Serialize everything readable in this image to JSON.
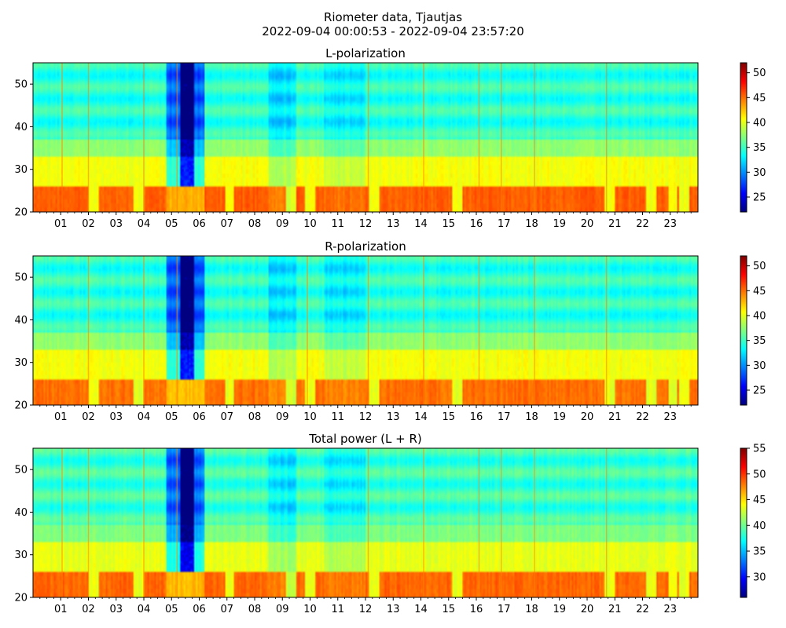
{
  "figure": {
    "suptitle_line1": "Riometer data, Tjautjas",
    "suptitle_line2": "2022-09-04 00:00:53 - 2022-09-04 23:57:20"
  },
  "colors": {
    "colormap": "jet",
    "axis": "#000000",
    "background": "#ffffff"
  },
  "chart_data": [
    {
      "type": "heatmap",
      "title": "L-polarization",
      "xlabel": "",
      "ylabel": "",
      "x_tick_labels": [
        "01",
        "02",
        "03",
        "04",
        "05",
        "06",
        "07",
        "08",
        "09",
        "10",
        "11",
        "12",
        "13",
        "14",
        "15",
        "16",
        "17",
        "18",
        "19",
        "20",
        "21",
        "22",
        "23"
      ],
      "x_range_hours": [
        0,
        24
      ],
      "y_ticks": [
        20,
        30,
        40,
        50
      ],
      "ylim": [
        20,
        55
      ],
      "colorbar": {
        "range": [
          22,
          52
        ],
        "ticks": [
          25,
          30,
          35,
          40,
          45,
          50
        ]
      },
      "features": {
        "band_rows": [
          [
            20,
            26,
            45.5
          ],
          [
            26,
            33,
            40.5
          ],
          [
            33,
            37,
            37.5
          ],
          [
            37,
            55,
            34.5
          ]
        ],
        "dip_hours": [
          [
            4.8,
            6.2,
            -6
          ],
          [
            8.5,
            9.5,
            -2
          ],
          [
            10.5,
            12,
            -1.5
          ]
        ],
        "spike_hours": [
          1.05,
          2.0,
          4.0,
          5.2,
          12.1,
          14.1,
          16.1,
          16.9,
          18.1,
          20.7
        ],
        "dark_columns": [
          5.45,
          5.7
        ],
        "gap_hours": [
          2.2,
          3.8,
          7.1,
          9.3,
          10.0,
          12.3,
          15.3,
          20.8,
          22.3,
          23.1,
          23.5
        ]
      }
    },
    {
      "type": "heatmap",
      "title": "R-polarization",
      "xlabel": "",
      "ylabel": "",
      "x_tick_labels": [
        "01",
        "02",
        "03",
        "04",
        "05",
        "06",
        "07",
        "08",
        "09",
        "10",
        "11",
        "12",
        "13",
        "14",
        "15",
        "16",
        "17",
        "18",
        "19",
        "20",
        "21",
        "22",
        "23"
      ],
      "x_range_hours": [
        0,
        24
      ],
      "y_ticks": [
        20,
        30,
        40,
        50
      ],
      "ylim": [
        20,
        55
      ],
      "colorbar": {
        "range": [
          22,
          52
        ],
        "ticks": [
          25,
          30,
          35,
          40,
          45,
          50
        ]
      },
      "features": {
        "band_rows": [
          [
            20,
            26,
            45.0
          ],
          [
            26,
            33,
            40.5
          ],
          [
            33,
            37,
            37.5
          ],
          [
            37,
            55,
            34.5
          ]
        ],
        "dip_hours": [
          [
            4.8,
            6.2,
            -6
          ],
          [
            8.5,
            9.5,
            -2
          ],
          [
            10.5,
            12,
            -1.5
          ]
        ],
        "spike_hours": [
          2.0,
          4.0,
          5.2,
          9.9,
          12.1,
          14.1,
          16.1,
          18.1,
          20.7
        ],
        "dark_columns": [
          5.45,
          5.7
        ],
        "gap_hours": [
          2.2,
          3.8,
          7.1,
          9.3,
          10.0,
          12.3,
          15.3,
          20.8,
          22.3,
          23.1,
          23.5
        ]
      }
    },
    {
      "type": "heatmap",
      "title": "Total power (L + R)",
      "xlabel": "",
      "ylabel": "",
      "x_tick_labels": [
        "01",
        "02",
        "03",
        "04",
        "05",
        "06",
        "07",
        "08",
        "09",
        "10",
        "11",
        "12",
        "13",
        "14",
        "15",
        "16",
        "17",
        "18",
        "19",
        "20",
        "21",
        "22",
        "23"
      ],
      "x_range_hours": [
        0,
        24
      ],
      "y_ticks": [
        20,
        30,
        40,
        50
      ],
      "ylim": [
        20,
        55
      ],
      "colorbar": {
        "range": [
          26,
          55
        ],
        "ticks": [
          30,
          35,
          40,
          45,
          50,
          55
        ]
      },
      "features": {
        "band_rows": [
          [
            20,
            26,
            48.5
          ],
          [
            26,
            33,
            43.5
          ],
          [
            33,
            37,
            40.5
          ],
          [
            37,
            55,
            38.5
          ]
        ],
        "dip_hours": [
          [
            4.8,
            6.2,
            -6
          ],
          [
            8.5,
            9.5,
            -2
          ],
          [
            10.5,
            12,
            -1.5
          ]
        ],
        "spike_hours": [
          1.05,
          2.0,
          4.0,
          5.2,
          12.1,
          14.1,
          16.1,
          16.9,
          18.1,
          20.7
        ],
        "dark_columns": [
          5.45,
          5.7
        ],
        "gap_hours": [
          2.2,
          3.8,
          7.1,
          9.3,
          10.0,
          12.3,
          15.3,
          20.8,
          22.3,
          23.1,
          23.5
        ]
      }
    }
  ]
}
